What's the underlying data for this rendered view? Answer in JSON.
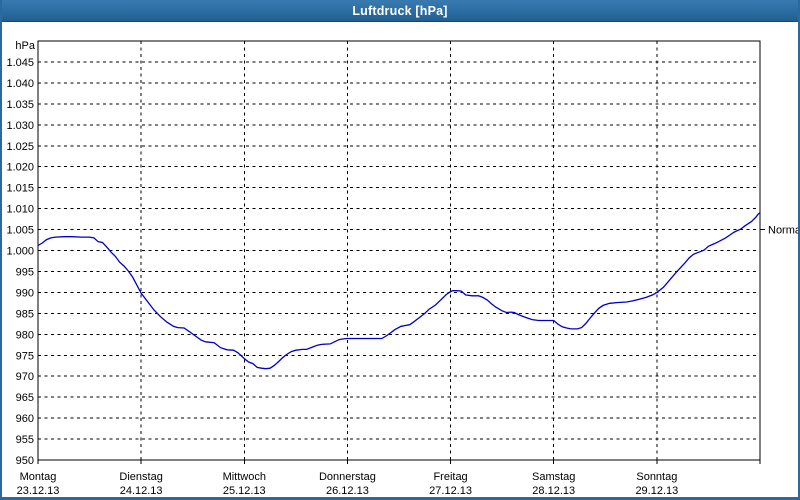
{
  "window": {
    "title": "Luftdruck [hPa]"
  },
  "colors": {
    "titlebar_blue": "#2b6da1",
    "titlebar_edge": "#17496f",
    "window_border_blue": "#2a6a9e",
    "plot_border": "#000000",
    "grid": "#000000",
    "text": "#000000",
    "series_blue": "#0000CC",
    "background": "#ffffff"
  },
  "chart_data": {
    "type": "line",
    "title": "Luftdruck [hPa]",
    "y_axis": {
      "unit_label": "hPa",
      "ylim": [
        950,
        1050
      ],
      "tick_min": 950,
      "tick_max": 1045,
      "tick_step": 5,
      "tick_labels": [
        "1.045",
        "1.040",
        "1.035",
        "1.030",
        "1.025",
        "1.020",
        "1.015",
        "1.010",
        "1.005",
        "1.000",
        "995",
        "990",
        "985",
        "980",
        "975",
        "970",
        "965",
        "960",
        "955",
        "950"
      ],
      "grid": "dashed"
    },
    "x_axis": {
      "total_hours": 168,
      "day_tick_hours": [
        0,
        24,
        48,
        72,
        96,
        120,
        144,
        168
      ],
      "days": [
        {
          "name": "Montag",
          "date": "23.12.13"
        },
        {
          "name": "Dienstag",
          "date": "24.12.13"
        },
        {
          "name": "Mittwoch",
          "date": "25.12.13"
        },
        {
          "name": "Donnerstag",
          "date": "26.12.13"
        },
        {
          "name": "Freitag",
          "date": "27.12.13"
        },
        {
          "name": "Samstag",
          "date": "28.12.13"
        },
        {
          "name": "Sonntag",
          "date": "29.12.13"
        }
      ],
      "grid": "dashed"
    },
    "annotations": [
      {
        "label": "Normal",
        "value": 1005,
        "side": "right"
      }
    ],
    "series": [
      {
        "name": "Luftdruck",
        "color": "#0000CC",
        "points": [
          [
            0,
            1001.2
          ],
          [
            1,
            1001.8
          ],
          [
            2,
            1002.6
          ],
          [
            3,
            1003.0
          ],
          [
            4,
            1003.2
          ],
          [
            6,
            1003.3
          ],
          [
            8,
            1003.3
          ],
          [
            10,
            1003.2
          ],
          [
            12,
            1003.2
          ],
          [
            13,
            1003.0
          ],
          [
            14,
            1002.1
          ],
          [
            15,
            1001.9
          ],
          [
            16,
            1000.8
          ],
          [
            17,
            999.6
          ],
          [
            18,
            998.6
          ],
          [
            19,
            997.2
          ],
          [
            20,
            996.3
          ],
          [
            21,
            995.1
          ],
          [
            22,
            993.7
          ],
          [
            23,
            991.8
          ],
          [
            24,
            989.8
          ],
          [
            25.5,
            987.8
          ],
          [
            27,
            985.8
          ],
          [
            28.5,
            984.2
          ],
          [
            30,
            982.9
          ],
          [
            31.5,
            981.9
          ],
          [
            32.5,
            981.6
          ],
          [
            34,
            981.5
          ],
          [
            35,
            980.8
          ],
          [
            36.5,
            979.7
          ],
          [
            38,
            978.6
          ],
          [
            39,
            978.2
          ],
          [
            41,
            978.0
          ],
          [
            42.5,
            976.8
          ],
          [
            44,
            976.3
          ],
          [
            45.5,
            976.2
          ],
          [
            46.5,
            975.6
          ],
          [
            47.2,
            975.0
          ],
          [
            48,
            974.2
          ],
          [
            49,
            973.4
          ],
          [
            50,
            973.0
          ],
          [
            51,
            972.1
          ],
          [
            52,
            971.9
          ],
          [
            53,
            971.8
          ],
          [
            54,
            971.9
          ],
          [
            55,
            972.6
          ],
          [
            56,
            973.5
          ],
          [
            57,
            974.5
          ],
          [
            58,
            975.3
          ],
          [
            59,
            975.9
          ],
          [
            60,
            976.2
          ],
          [
            61.5,
            976.4
          ],
          [
            62.5,
            976.4
          ],
          [
            64,
            977.0
          ],
          [
            65,
            977.4
          ],
          [
            66,
            977.6
          ],
          [
            68,
            977.7
          ],
          [
            69,
            978.2
          ],
          [
            70,
            978.7
          ],
          [
            71,
            978.9
          ],
          [
            72,
            979.0
          ],
          [
            76,
            979.0
          ],
          [
            80,
            979.0
          ],
          [
            81,
            979.6
          ],
          [
            82,
            980.3
          ],
          [
            83,
            981.1
          ],
          [
            84.5,
            981.9
          ],
          [
            85.5,
            982.1
          ],
          [
            86.5,
            982.3
          ],
          [
            87.5,
            983.0
          ],
          [
            88.5,
            983.8
          ],
          [
            90,
            985.0
          ],
          [
            91,
            986.0
          ],
          [
            92.5,
            987.0
          ],
          [
            93.5,
            988.0
          ],
          [
            95,
            989.5
          ],
          [
            96,
            990.2
          ],
          [
            96.5,
            990.4
          ],
          [
            97.5,
            990.4
          ],
          [
            98.5,
            990.3
          ],
          [
            99.5,
            989.4
          ],
          [
            101,
            989.2
          ],
          [
            102.5,
            989.2
          ],
          [
            103.5,
            988.8
          ],
          [
            104.5,
            988.2
          ],
          [
            105.5,
            987.3
          ],
          [
            106.5,
            986.5
          ],
          [
            108,
            985.6
          ],
          [
            109,
            985.2
          ],
          [
            110,
            985.3
          ],
          [
            110.8,
            985.2
          ],
          [
            112,
            984.6
          ],
          [
            113.5,
            984.0
          ],
          [
            115,
            983.5
          ],
          [
            116.5,
            983.3
          ],
          [
            118,
            983.3
          ],
          [
            120,
            983.3
          ],
          [
            121,
            982.4
          ],
          [
            122,
            981.8
          ],
          [
            123,
            981.5
          ],
          [
            124,
            981.3
          ],
          [
            125.5,
            981.3
          ],
          [
            126.5,
            981.6
          ],
          [
            127.5,
            982.6
          ],
          [
            128.5,
            983.9
          ],
          [
            129.5,
            985.1
          ],
          [
            130.5,
            986.2
          ],
          [
            131.5,
            986.9
          ],
          [
            133,
            987.4
          ],
          [
            135,
            987.6
          ],
          [
            137,
            987.7
          ],
          [
            138.5,
            988.0
          ],
          [
            140,
            988.4
          ],
          [
            141.5,
            988.8
          ],
          [
            143,
            989.4
          ],
          [
            144,
            990.0
          ],
          [
            145.5,
            991.2
          ],
          [
            147,
            993.0
          ],
          [
            148.5,
            994.8
          ],
          [
            149.5,
            995.9
          ],
          [
            150.5,
            997.0
          ],
          [
            151.5,
            998.2
          ],
          [
            152.5,
            999.1
          ],
          [
            154,
            999.7
          ],
          [
            155,
            1000.1
          ],
          [
            156,
            1001.0
          ],
          [
            157.5,
            1001.7
          ],
          [
            158.5,
            1002.2
          ],
          [
            160,
            1003.0
          ],
          [
            161,
            1003.7
          ],
          [
            162,
            1004.4
          ],
          [
            163.5,
            1005.1
          ],
          [
            164.5,
            1005.9
          ],
          [
            166,
            1006.9
          ],
          [
            167,
            1007.9
          ],
          [
            167.6,
            1008.7
          ],
          [
            168,
            1009.0
          ]
        ]
      }
    ]
  }
}
